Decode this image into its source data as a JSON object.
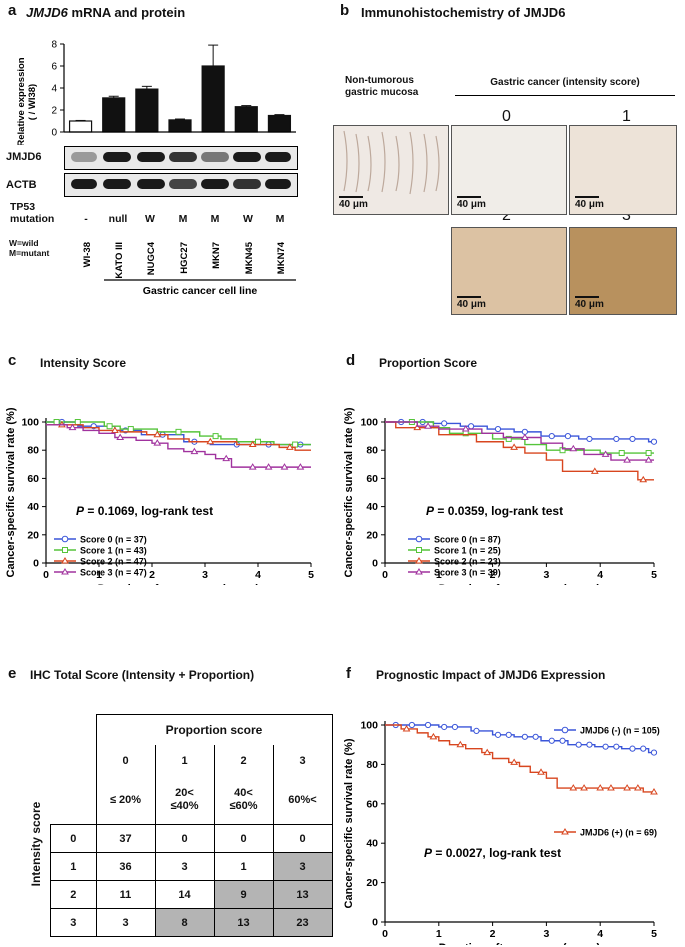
{
  "panel_a": {
    "letter": "a",
    "title_italic": "JMJD6",
    "title_rest": " mRNA and protein",
    "ylabel_line1": "Relative expression",
    "ylabel_line2": "( / WI38)",
    "yticks": [
      "0",
      "2",
      "4",
      "6",
      "8"
    ],
    "bars": [
      1.0,
      3.1,
      3.9,
      1.1,
      6.0,
      2.3,
      1.5
    ],
    "errors": [
      0.05,
      0.15,
      0.25,
      0.08,
      1.9,
      0.1,
      0.08
    ],
    "blot_labels": [
      "JMJD6",
      "ACTB"
    ],
    "tp53_label_line1": "TP53",
    "tp53_label_line2": "mutation",
    "tp53_values": [
      "-",
      "null",
      "W",
      "M",
      "M",
      "W",
      "M"
    ],
    "legend_line1": "W=wild",
    "legend_line2": "M=mutant",
    "cell_lines": [
      "WI-38",
      "KATO III",
      "NUGC4",
      "HGC27",
      "MKN7",
      "MKN45",
      "MKN74"
    ],
    "group_label": "Gastric cancer cell line"
  },
  "panel_b": {
    "letter": "b",
    "title": "Immunohistochemistry of JMJD6",
    "normal_label_line1": "Non-tumorous",
    "normal_label_line2": "gastric mucosa",
    "cancer_label": "Gastric cancer (intensity score)",
    "scores": [
      "0",
      "1",
      "2",
      "3"
    ],
    "scalebar": "40 μm"
  },
  "panel_c": {
    "letter": "c",
    "title": "Intensity Score",
    "ylabel": "Cancer-specific survival rate (%)",
    "xlabel": "Duration after surgery (years)",
    "stat_p": "P",
    "stat_text": " = 0.1069, log-rank test",
    "legend": [
      "Score 0 (n = 37)",
      "Score 1 (n = 43)",
      "Score 2 (n = 47)",
      "Score 3 (n = 47)"
    ]
  },
  "panel_d": {
    "letter": "d",
    "title": "Proportion Score",
    "ylabel": "Cancer-specific survival rate (%)",
    "xlabel": "Duration after surgery (years)",
    "stat_p": "P",
    "stat_text": " = 0.0359, log-rank test",
    "legend": [
      "Score 0 (n = 87)",
      "Score 1 (n = 25)",
      "Score 2 (n = 23)",
      "Score 3 (n = 39)"
    ]
  },
  "panel_e": {
    "letter": "e",
    "title": "IHC Total Score (Intensity + Proportion)",
    "proportion_header": "Proportion score",
    "intensity_header": "Intensity score",
    "col_scores": [
      "0",
      "1",
      "2",
      "3"
    ],
    "col_ranges": [
      "≤ 20%",
      "20<\n≤40%",
      "40<\n≤60%",
      "60%<"
    ],
    "row_scores": [
      "0",
      "1",
      "2",
      "3"
    ],
    "cells": [
      [
        "37",
        "0",
        "0",
        "0"
      ],
      [
        "36",
        "3",
        "1",
        "3"
      ],
      [
        "11",
        "14",
        "9",
        "13"
      ],
      [
        "3",
        "8",
        "13",
        "23"
      ]
    ],
    "shaded": [
      [
        0,
        0,
        0,
        0
      ],
      [
        0,
        0,
        0,
        1
      ],
      [
        0,
        0,
        1,
        1
      ],
      [
        0,
        1,
        1,
        1
      ]
    ]
  },
  "panel_f": {
    "letter": "f",
    "title": "Prognostic Impact of JMJD6 Expression",
    "ylabel": "Cancer-specific survival rate (%)",
    "xlabel": "Duration after surgery (years)",
    "stat_p": "P",
    "stat_text": " = 0.0027, log-rank test",
    "legend": [
      "JMJD6 (-) (n = 105)",
      "JMJD6 (+) (n = 69)"
    ]
  },
  "colors": {
    "blue": "#3a55d9",
    "green": "#55c43a",
    "red": "#d8461f",
    "purple": "#a0329e",
    "shade": "#b4b4b4"
  },
  "chart_data": [
    {
      "type": "bar",
      "title": "JMJD6 mRNA and protein",
      "categories": [
        "WI-38",
        "KATO III",
        "NUGC4",
        "HGC27",
        "MKN7",
        "MKN45",
        "MKN74"
      ],
      "values": [
        1.0,
        3.1,
        3.9,
        1.1,
        6.0,
        2.3,
        1.5
      ],
      "ylabel": "Relative expression ( / WI38)",
      "ylim": [
        0,
        8
      ]
    },
    {
      "type": "line",
      "title": "Intensity Score",
      "xlabel": "Duration after surgery (years)",
      "ylabel": "Cancer-specific survival rate (%)",
      "xlim": [
        0,
        5
      ],
      "ylim": [
        0,
        100
      ],
      "xticks": [
        0,
        1,
        2,
        3,
        4,
        5
      ],
      "yticks": [
        0,
        20,
        40,
        60,
        80,
        100
      ],
      "series": [
        {
          "name": "Score 0 (n = 37)",
          "color": "blue",
          "x": [
            0,
            0.6,
            1.3,
            1.8,
            2.6,
            3.1,
            5.0
          ],
          "y": [
            100,
            97,
            94,
            91,
            86,
            84,
            84
          ],
          "censor_x": [
            0.3,
            0.9,
            1.5,
            2.2,
            2.8,
            3.6,
            4.2,
            4.8
          ]
        },
        {
          "name": "Score 1 (n = 43)",
          "color": "green",
          "x": [
            0,
            1.1,
            1.4,
            2.1,
            2.9,
            3.3,
            3.6,
            4.3,
            5.0
          ],
          "y": [
            100,
            97,
            95,
            93,
            90,
            88,
            86,
            84,
            84
          ],
          "censor_x": [
            0.2,
            0.6,
            1.2,
            1.6,
            2.5,
            3.2,
            4.0,
            4.7
          ]
        },
        {
          "name": "Score 2 (n = 47)",
          "color": "red",
          "x": [
            0,
            0.7,
            1.0,
            1.4,
            1.9,
            2.3,
            2.7,
            3.6,
            4.4,
            4.7,
            5.0
          ],
          "y": [
            98,
            96,
            94,
            93,
            91,
            88,
            86,
            84,
            82,
            80,
            80
          ],
          "censor_x": [
            0.3,
            1.3,
            2.1,
            3.1,
            3.9,
            4.6
          ]
        },
        {
          "name": "Score 3 (n = 47)",
          "color": "purple",
          "x": [
            0,
            0.4,
            0.7,
            1.0,
            1.3,
            1.7,
            2.0,
            2.3,
            2.6,
            3.0,
            3.2,
            3.5,
            5.0
          ],
          "y": [
            98,
            96,
            94,
            92,
            89,
            87,
            85,
            81,
            79,
            77,
            74,
            68,
            68
          ],
          "censor_x": [
            0.5,
            1.4,
            2.1,
            2.8,
            3.4,
            3.9,
            4.2,
            4.5,
            4.8
          ]
        }
      ]
    },
    {
      "type": "line",
      "title": "Proportion Score",
      "xlabel": "Duration after surgery (years)",
      "ylabel": "Cancer-specific survival rate (%)",
      "xlim": [
        0,
        5
      ],
      "ylim": [
        0,
        100
      ],
      "xticks": [
        0,
        1,
        2,
        3,
        4,
        5
      ],
      "yticks": [
        0,
        20,
        40,
        60,
        80,
        100
      ],
      "series": [
        {
          "name": "Score 0 (n = 87)",
          "color": "blue",
          "x": [
            0,
            0.9,
            1.4,
            1.9,
            2.4,
            2.9,
            3.6,
            4.1,
            4.9,
            5.0
          ],
          "y": [
            100,
            99,
            97,
            95,
            93,
            90,
            88,
            88,
            86,
            86
          ],
          "censor_x": [
            0.3,
            0.7,
            1.1,
            1.6,
            2.1,
            2.6,
            3.1,
            3.4,
            3.8,
            4.3,
            4.6,
            5.0
          ]
        },
        {
          "name": "Score 1 (n = 25)",
          "color": "green",
          "x": [
            0,
            0.9,
            1.2,
            2.0,
            2.6,
            3.0,
            4.0,
            5.0
          ],
          "y": [
            100,
            96,
            92,
            88,
            84,
            80,
            78,
            78
          ],
          "censor_x": [
            0.5,
            1.5,
            2.3,
            3.3,
            4.4,
            4.9
          ]
        },
        {
          "name": "Score 2 (n = 23)",
          "color": "red",
          "x": [
            0,
            0.2,
            1.0,
            1.7,
            2.2,
            2.6,
            3.0,
            3.3,
            4.7,
            5.0
          ],
          "y": [
            100,
            96,
            91,
            86,
            82,
            78,
            73,
            65,
            59,
            59
          ],
          "censor_x": [
            0.6,
            2.4,
            3.9,
            4.8
          ]
        },
        {
          "name": "Score 3 (n = 39)",
          "color": "purple",
          "x": [
            0,
            0.6,
            1.0,
            1.8,
            2.2,
            2.9,
            3.3,
            3.7,
            4.2,
            5.0
          ],
          "y": [
            100,
            97,
            95,
            92,
            89,
            85,
            81,
            77,
            73,
            73
          ],
          "censor_x": [
            0.8,
            1.5,
            2.6,
            3.5,
            4.1,
            4.5,
            4.9
          ]
        }
      ]
    },
    {
      "type": "line",
      "title": "Prognostic Impact of JMJD6 Expression",
      "xlabel": "Duration after surgery (years)",
      "ylabel": "Cancer-specific survival rate (%)",
      "xlim": [
        0,
        5
      ],
      "ylim": [
        0,
        100
      ],
      "xticks": [
        0,
        1,
        2,
        3,
        4,
        5
      ],
      "yticks": [
        0,
        20,
        40,
        60,
        80,
        100
      ],
      "series": [
        {
          "name": "JMJD6 (-) (n = 105)",
          "color": "blue",
          "x": [
            0,
            1.0,
            1.6,
            2.0,
            2.4,
            2.9,
            3.4,
            3.9,
            4.4,
            4.9,
            5.0
          ],
          "y": [
            100,
            99,
            97,
            95,
            94,
            92,
            90,
            89,
            88,
            86,
            86
          ],
          "censor_x": [
            0.2,
            0.5,
            0.8,
            1.1,
            1.3,
            1.7,
            2.1,
            2.3,
            2.6,
            2.8,
            3.1,
            3.3,
            3.6,
            3.8,
            4.1,
            4.3,
            4.6,
            4.8,
            5.0
          ]
        },
        {
          "name": "JMJD6 (+) (n = 69)",
          "color": "red",
          "x": [
            0,
            0.3,
            0.6,
            0.8,
            1.0,
            1.2,
            1.5,
            1.8,
            2.0,
            2.3,
            2.5,
            2.7,
            3.0,
            3.2,
            4.8,
            5.0
          ],
          "y": [
            100,
            98,
            96,
            94,
            92,
            90,
            88,
            86,
            83,
            81,
            79,
            76,
            73,
            68,
            66,
            66
          ],
          "censor_x": [
            0.4,
            0.9,
            1.4,
            1.9,
            2.4,
            2.9,
            3.5,
            3.7,
            4.0,
            4.2,
            4.5,
            4.7,
            5.0
          ]
        }
      ]
    }
  ]
}
